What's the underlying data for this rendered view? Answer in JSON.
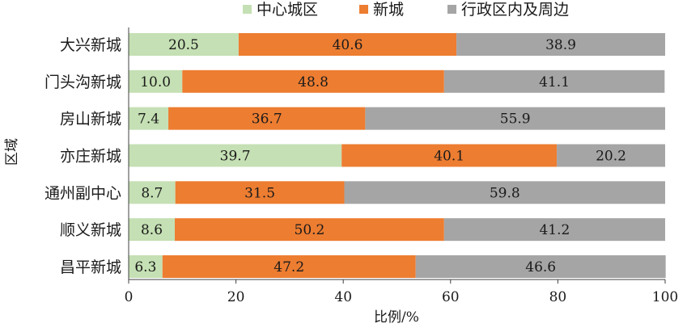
{
  "chart_data": {
    "type": "bar",
    "orientation": "horizontal",
    "stacked": true,
    "categories": [
      "大兴新城",
      "门头沟新城",
      "房山新城",
      "亦庄新城",
      "通州副中心",
      "顺义新城",
      "昌平新城"
    ],
    "series": [
      {
        "name": "中心城区",
        "color": "#c5e0b4",
        "values": [
          20.5,
          10.0,
          7.4,
          39.7,
          8.7,
          8.6,
          6.3
        ]
      },
      {
        "name": "新城",
        "color": "#ed7d31",
        "values": [
          40.6,
          48.8,
          36.7,
          40.1,
          31.5,
          50.2,
          47.2
        ]
      },
      {
        "name": "行政区内及周边",
        "color": "#a5a5a5",
        "values": [
          38.9,
          41.1,
          55.9,
          20.2,
          59.8,
          41.2,
          46.6
        ]
      }
    ],
    "value_labels": [
      [
        "20.5",
        "10.0",
        "7.4",
        "39.7",
        "8.7",
        "8.6",
        "6.3"
      ],
      [
        "40.6",
        "48.8",
        "36.7",
        "40.1",
        "31.5",
        "50.2",
        "47.2"
      ],
      [
        "38.9",
        "41.1",
        "55.9",
        "20.2",
        "59.8",
        "41.2",
        "46.6"
      ]
    ],
    "xlabel": "比例/%",
    "ylabel": "区域",
    "xlim": [
      0,
      100
    ],
    "xticks": [
      0,
      20,
      40,
      60,
      80,
      100
    ],
    "xtick_labels": [
      "0",
      "20",
      "40",
      "60",
      "80",
      "100"
    ],
    "legend_position": "top",
    "grid": false
  }
}
